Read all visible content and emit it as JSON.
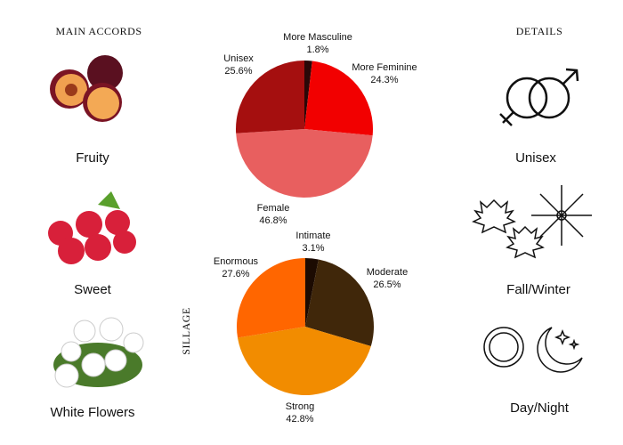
{
  "main_accords": {
    "title": "MAIN ACCORDS",
    "items": [
      "Fruity",
      "Sweet",
      "White Flowers"
    ]
  },
  "details": {
    "title": "DETAILS",
    "items": [
      "Unisex",
      "Fall/Winter",
      "Day/Night"
    ]
  },
  "chart_data": [
    {
      "type": "pie",
      "categories": [
        "More Masculine",
        "More Feminine",
        "Female",
        "Unisex"
      ],
      "values": [
        1.8,
        24.3,
        46.8,
        25.6
      ],
      "value_labels": [
        "1.8%",
        "24.3%",
        "46.8%",
        "25.6%"
      ],
      "colors": [
        "#2b0808",
        "#f20000",
        "#e85f5f",
        "#a50f0f"
      ]
    },
    {
      "type": "pie",
      "title": "SILLAGE",
      "categories": [
        "Intimate",
        "Moderate",
        "Strong",
        "Enormous"
      ],
      "values": [
        3.1,
        26.5,
        42.8,
        27.6
      ],
      "value_labels": [
        "3.1%",
        "26.5%",
        "42.8%",
        "27.6%"
      ],
      "colors": [
        "#1c0b02",
        "#40270a",
        "#f28c00",
        "#ff6600"
      ]
    }
  ]
}
